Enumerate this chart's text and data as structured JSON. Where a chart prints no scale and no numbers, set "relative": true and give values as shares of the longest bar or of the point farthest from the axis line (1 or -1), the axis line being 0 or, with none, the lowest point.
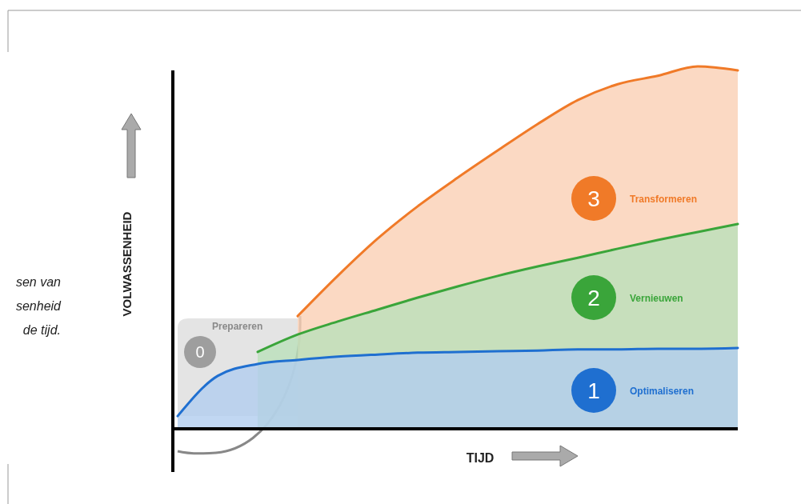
{
  "chart_data": {
    "type": "area",
    "relative": true,
    "xlabel": "TIJD",
    "ylabel": "VOLWASSENHEID",
    "legend": false,
    "categories": [
      null,
      null,
      null,
      null,
      null,
      null,
      null,
      null,
      null,
      null,
      null,
      null,
      null,
      null,
      null
    ],
    "series": [
      {
        "name": "Optimaliseren",
        "color": "#1f6fd0",
        "values": [
          0.035,
          0.146,
          0.179,
          0.19,
          0.199,
          0.205,
          0.21,
          0.212,
          0.214,
          0.216,
          0.219,
          0.219,
          0.221,
          0.221,
          0.223
        ]
      },
      {
        "name": "Vernieuwen",
        "color": "#3aa53a",
        "values": [
          null,
          null,
          0.212,
          0.26,
          0.296,
          0.329,
          0.362,
          0.393,
          0.422,
          0.448,
          0.472,
          0.497,
          0.521,
          0.543,
          0.565
        ]
      },
      {
        "name": "Transformeren",
        "color": "#f07a28",
        "values": [
          null,
          null,
          null,
          0.311,
          0.422,
          0.525,
          0.614,
          0.693,
          0.768,
          0.841,
          0.907,
          0.951,
          0.974,
          1,
          0.989
        ]
      }
    ],
    "annotations": [
      "0",
      "Prepareren",
      "1",
      "2",
      "3",
      "sen van",
      "senheid",
      "de tijd."
    ]
  }
}
